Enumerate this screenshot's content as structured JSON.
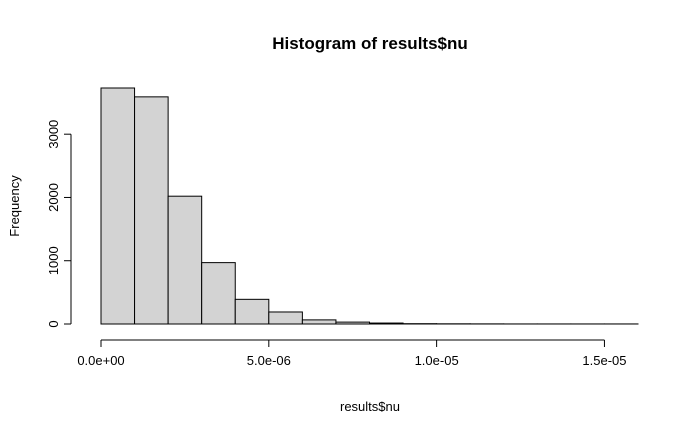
{
  "chart_data": {
    "type": "bar",
    "title": "Histogram of results$nu",
    "xlabel": "results$nu",
    "ylabel": "Frequency",
    "bin_width": 1e-06,
    "bins": [
      {
        "start": 0,
        "end": 1e-06,
        "count": 3730
      },
      {
        "start": 1e-06,
        "end": 2e-06,
        "count": 3590
      },
      {
        "start": 2e-06,
        "end": 3e-06,
        "count": 2020
      },
      {
        "start": 3e-06,
        "end": 4e-06,
        "count": 970
      },
      {
        "start": 4e-06,
        "end": 5e-06,
        "count": 390
      },
      {
        "start": 5e-06,
        "end": 6e-06,
        "count": 190
      },
      {
        "start": 6e-06,
        "end": 7e-06,
        "count": 65
      },
      {
        "start": 7e-06,
        "end": 8e-06,
        "count": 30
      },
      {
        "start": 8e-06,
        "end": 9e-06,
        "count": 15
      },
      {
        "start": 9e-06,
        "end": 1e-05,
        "count": 5
      },
      {
        "start": 1e-05,
        "end": 1.1e-05,
        "count": 3
      },
      {
        "start": 1.1e-05,
        "end": 1.2e-05,
        "count": 2
      },
      {
        "start": 1.2e-05,
        "end": 1.3e-05,
        "count": 1
      },
      {
        "start": 1.3e-05,
        "end": 1.4e-05,
        "count": 1
      },
      {
        "start": 1.4e-05,
        "end": 1.5e-05,
        "count": 1
      },
      {
        "start": 1.5e-05,
        "end": 1.6e-05,
        "count": 1
      }
    ],
    "x_ticks": [
      {
        "value": 0,
        "label": "0.0e+00"
      },
      {
        "value": 5e-06,
        "label": "5.0e-06"
      },
      {
        "value": 1e-05,
        "label": "1.0e-05"
      },
      {
        "value": 1.5e-05,
        "label": "1.5e-05"
      }
    ],
    "y_ticks": [
      {
        "value": 0,
        "label": "0"
      },
      {
        "value": 1000,
        "label": "1000"
      },
      {
        "value": 2000,
        "label": "2000"
      },
      {
        "value": 3000,
        "label": "3000"
      }
    ],
    "xlim": [
      0,
      1.6e-05
    ],
    "ylim": [
      0,
      3730
    ],
    "grid": false,
    "colors": {
      "bar_fill": "#d3d3d3",
      "bar_stroke": "#000000"
    }
  }
}
